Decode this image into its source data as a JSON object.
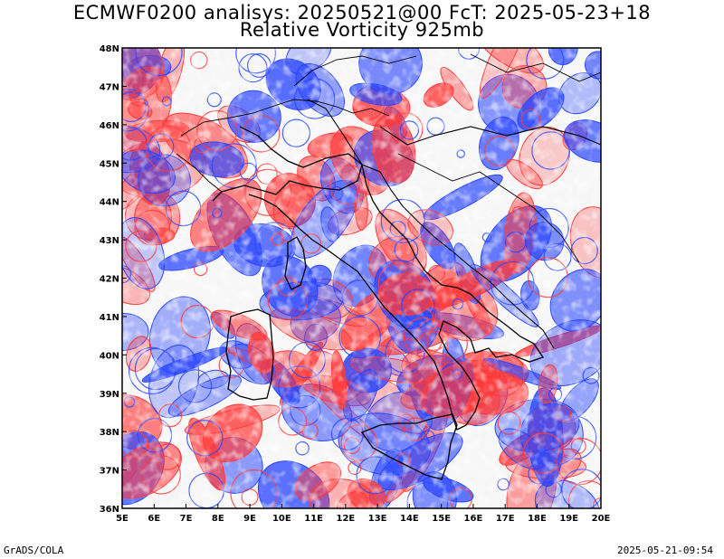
{
  "title_line1": "ECMWF0200 analisys: 20250521@00 FcT: 2025-05-23+18",
  "title_line2": "Relative Vorticity 925mb",
  "lon_labels": [
    "5E",
    "6E",
    "7E",
    "8E",
    "9E",
    "10E",
    "11E",
    "12E",
    "13E",
    "14E",
    "15E",
    "16E",
    "17E",
    "18E",
    "19E",
    "20E"
  ],
  "lat_labels": [
    "36N",
    "37N",
    "38N",
    "39N",
    "40N",
    "41N",
    "42N",
    "43N",
    "44N",
    "45N",
    "46N",
    "47N",
    "48N"
  ],
  "lon_range": [
    5,
    20
  ],
  "lat_range": [
    36,
    48
  ],
  "colors": {
    "positive": "#ff3a3a",
    "negative": "#2a46ff",
    "zero": "#c050c0",
    "coast": "#000000"
  },
  "footer_left": "GrADS/COLA",
  "footer_right": "2025-05-21-09:54"
}
